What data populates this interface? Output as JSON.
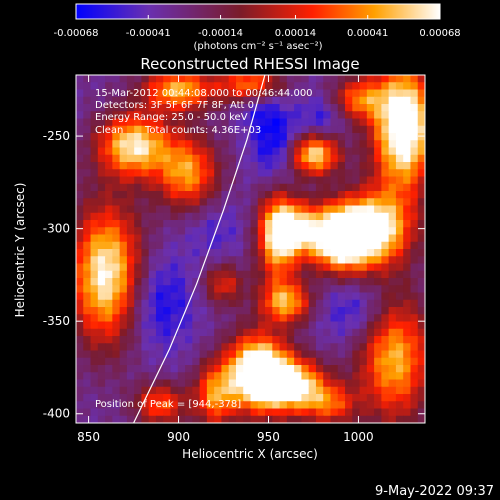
{
  "chart_data": {
    "type": "heatmap",
    "title": "Reconstructed RHESSI Image",
    "xlabel": "Heliocentric X (arcsec)",
    "ylabel": "Heliocentric Y (arcsec)",
    "xlim": [
      843,
      1037
    ],
    "ylim": [
      -405,
      -217
    ],
    "x_ticks": [
      "850",
      "900",
      "950",
      "1000"
    ],
    "y_ticks": [
      "-250",
      "-300",
      "-350",
      "-400"
    ],
    "x_tick_values": [
      850,
      900,
      950,
      1000
    ],
    "y_tick_values": [
      -250,
      -300,
      -350,
      -400
    ],
    "colorbar": {
      "min": -0.00068,
      "max": 0.00068,
      "tick_labels": [
        "-0.00068",
        "-0.00041",
        "-0.00014",
        "0.00014",
        "0.00041",
        "0.00068"
      ],
      "tick_values": [
        -0.00068,
        -0.00041,
        -0.00014,
        0.00014,
        0.00041,
        0.00068
      ],
      "units": "(photons cm⁻² s⁻¹ asec⁻²)",
      "colormap": [
        "#0000ff",
        "#6a30b0",
        "#7a1b2a",
        "#ff2000",
        "#ffa000",
        "#ffffff"
      ]
    },
    "annotations": {
      "time": "15-Mar-2012 00:44:08.000 to 00:46:44.000",
      "detectors": "Detectors: 3F 5F 6F 7F 8F, Att 0",
      "energy": "Energy Range: 25.0 - 50.0 keV",
      "method": "Clean",
      "counts": "Total counts: 4.36E+03",
      "peak": "Position of Peak = [944,-378]"
    },
    "peak": {
      "x": 944,
      "y": -378
    },
    "limb": [
      [
        875,
        -405
      ],
      [
        895,
        -365
      ],
      [
        910,
        -330
      ],
      [
        925,
        -290
      ],
      [
        938,
        -252
      ],
      [
        948,
        -217
      ]
    ],
    "blobs": [
      {
        "x": 1025,
        "y": -245,
        "sx": 12,
        "sy": 24,
        "a": 0.9
      },
      {
        "x": 1010,
        "y": -300,
        "sx": 14,
        "sy": 14,
        "a": 0.7
      },
      {
        "x": 990,
        "y": -305,
        "sx": 12,
        "sy": 12,
        "a": 0.95
      },
      {
        "x": 965,
        "y": -300,
        "sx": 10,
        "sy": 10,
        "a": 0.55
      },
      {
        "x": 955,
        "y": -305,
        "sx": 8,
        "sy": 18,
        "a": 0.6
      },
      {
        "x": 975,
        "y": -260,
        "sx": 10,
        "sy": 8,
        "a": 0.7
      },
      {
        "x": 960,
        "y": -340,
        "sx": 10,
        "sy": 8,
        "a": 0.55
      },
      {
        "x": 944,
        "y": -378,
        "sx": 12,
        "sy": 14,
        "a": 1.0
      },
      {
        "x": 965,
        "y": -385,
        "sx": 12,
        "sy": 10,
        "a": 0.7
      },
      {
        "x": 920,
        "y": -390,
        "sx": 8,
        "sy": 12,
        "a": 0.5
      },
      {
        "x": 860,
        "y": -325,
        "sx": 14,
        "sy": 26,
        "a": 0.75
      },
      {
        "x": 875,
        "y": -255,
        "sx": 14,
        "sy": 12,
        "a": 0.7
      },
      {
        "x": 905,
        "y": -270,
        "sx": 12,
        "sy": 14,
        "a": 0.55
      },
      {
        "x": 900,
        "y": -225,
        "sx": 14,
        "sy": 8,
        "a": 0.6
      },
      {
        "x": 940,
        "y": -222,
        "sx": 12,
        "sy": 7,
        "a": 0.5
      },
      {
        "x": 1020,
        "y": -370,
        "sx": 14,
        "sy": 24,
        "a": 0.6
      },
      {
        "x": 1000,
        "y": -230,
        "sx": 10,
        "sy": 8,
        "a": 0.45
      },
      {
        "x": 890,
        "y": -395,
        "sx": 10,
        "sy": 8,
        "a": 0.45
      },
      {
        "x": 925,
        "y": -330,
        "sx": 8,
        "sy": 8,
        "a": 0.35
      },
      {
        "x": 985,
        "y": -395,
        "sx": 10,
        "sy": 8,
        "a": 0.4
      }
    ],
    "troughs": [
      {
        "x": 955,
        "y": -255,
        "sx": 10,
        "sy": 14,
        "a": 0.8
      },
      {
        "x": 888,
        "y": -340,
        "sx": 14,
        "sy": 18,
        "a": 0.7
      },
      {
        "x": 945,
        "y": -235,
        "sx": 8,
        "sy": 8,
        "a": 0.45
      },
      {
        "x": 1000,
        "y": -345,
        "sx": 14,
        "sy": 12,
        "a": 0.6
      },
      {
        "x": 920,
        "y": -300,
        "sx": 12,
        "sy": 12,
        "a": 0.35
      },
      {
        "x": 980,
        "y": -240,
        "sx": 8,
        "sy": 8,
        "a": 0.5
      }
    ]
  },
  "footer": {
    "timestamp": "9-May-2022 09:37"
  }
}
